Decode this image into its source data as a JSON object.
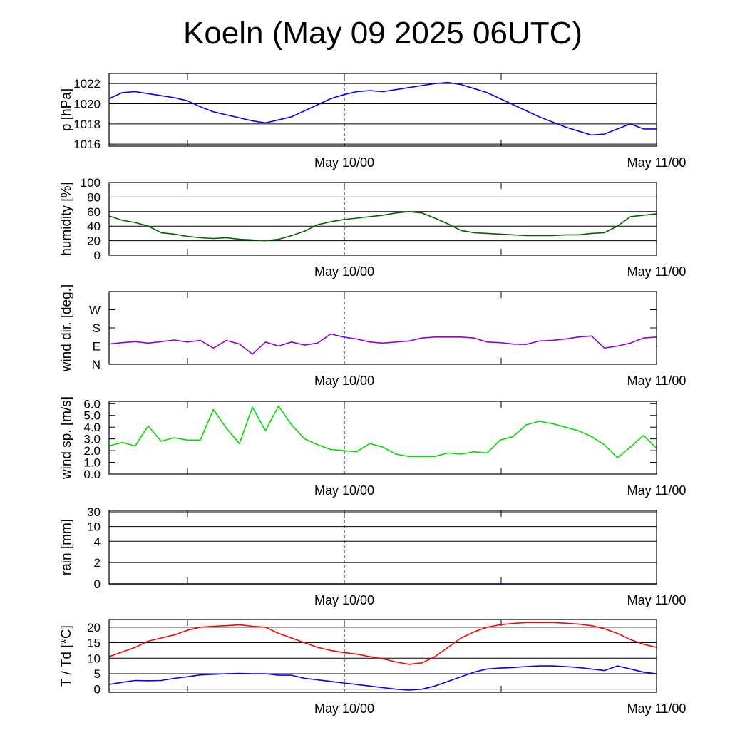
{
  "title": "Koeln (May 09 2025 06UTC)",
  "time_axis": {
    "tick_labels": [
      "May 10/00",
      "May 11/00"
    ]
  },
  "chart_data": [
    {
      "type": "line",
      "ylabel": "p [hPa]",
      "yticks": [
        1016,
        1018,
        1020,
        1022
      ],
      "ylim": [
        1015.8,
        1023
      ],
      "grid": true,
      "color": "#0000ff",
      "x_hours": [
        0,
        1,
        2,
        3,
        4,
        5,
        6,
        7,
        8,
        9,
        10,
        11,
        12,
        13,
        14,
        15,
        16,
        17,
        18,
        19,
        20,
        21,
        22,
        23,
        24,
        25,
        26,
        27,
        28,
        29,
        30,
        31,
        32,
        33,
        34,
        35,
        36,
        37,
        38,
        39,
        40,
        41,
        42
      ],
      "values": [
        1020.5,
        1021.1,
        1021.2,
        1021.0,
        1020.8,
        1020.6,
        1020.3,
        1019.7,
        1019.2,
        1018.9,
        1018.6,
        1018.3,
        1018.1,
        1018.4,
        1018.7,
        1019.3,
        1019.9,
        1020.5,
        1020.9,
        1021.2,
        1021.3,
        1021.2,
        1021.4,
        1021.6,
        1021.8,
        1022.0,
        1022.1,
        1021.9,
        1021.5,
        1021.1,
        1020.5,
        1019.9,
        1019.3,
        1018.7,
        1018.2,
        1017.7,
        1017.3,
        1016.9,
        1017.0,
        1017.5,
        1018.0,
        1017.5,
        1017.5
      ]
    },
    {
      "type": "line",
      "ylabel": "humidity [%]",
      "yticks": [
        0,
        20,
        40,
        60,
        80,
        100
      ],
      "ylim": [
        0,
        100
      ],
      "grid": true,
      "color": "#006400",
      "x_hours": [
        0,
        1,
        2,
        3,
        4,
        5,
        6,
        7,
        8,
        9,
        10,
        11,
        12,
        13,
        14,
        15,
        16,
        17,
        18,
        19,
        20,
        21,
        22,
        23,
        24,
        25,
        26,
        27,
        28,
        29,
        30,
        31,
        32,
        33,
        34,
        35,
        36,
        37,
        38,
        39,
        40,
        41,
        42
      ],
      "values": [
        54,
        48,
        45,
        40,
        31,
        29,
        26,
        24,
        23,
        24,
        22,
        21,
        20,
        22,
        27,
        33,
        42,
        46,
        49,
        51,
        53,
        55,
        58,
        60,
        58,
        51,
        43,
        34,
        31,
        30,
        29,
        28,
        27,
        27,
        27,
        28,
        28,
        30,
        31,
        40,
        53,
        55,
        57
      ]
    },
    {
      "type": "line",
      "ylabel": "wind dir. [deg.]",
      "ytick_labels": [
        "N",
        "E",
        "S",
        "W"
      ],
      "yticks": [
        0,
        90,
        180,
        270
      ],
      "ylim": [
        0,
        360
      ],
      "grid": false,
      "color": "#9400d3",
      "x_hours": [
        0,
        1,
        2,
        3,
        4,
        5,
        6,
        7,
        8,
        9,
        10,
        11,
        12,
        13,
        14,
        15,
        16,
        17,
        18,
        19,
        20,
        21,
        22,
        23,
        24,
        25,
        26,
        27,
        28,
        29,
        30,
        31,
        32,
        33,
        34,
        35,
        36,
        37,
        38,
        39,
        40,
        41,
        42
      ],
      "values": [
        100,
        107,
        112,
        105,
        112,
        120,
        110,
        118,
        80,
        118,
        100,
        50,
        110,
        90,
        110,
        95,
        105,
        150,
        135,
        125,
        110,
        105,
        110,
        115,
        130,
        135,
        135,
        135,
        130,
        110,
        107,
        100,
        98,
        115,
        118,
        125,
        135,
        140,
        80,
        90,
        105,
        130,
        135
      ]
    },
    {
      "type": "line",
      "ylabel": "wind sp. [m/s]",
      "yticks": [
        0.0,
        1.0,
        2.0,
        3.0,
        4.0,
        5.0,
        6.0
      ],
      "ytick_labels": [
        "0.0",
        "1.0",
        "2.0",
        "3.0",
        "4.0",
        "5.0",
        "6.0"
      ],
      "ylim": [
        0,
        6.2
      ],
      "grid": false,
      "color": "#00dd00",
      "x_hours": [
        0,
        1,
        2,
        3,
        4,
        5,
        6,
        7,
        8,
        9,
        10,
        11,
        12,
        13,
        14,
        15,
        16,
        17,
        18,
        19,
        20,
        21,
        22,
        23,
        24,
        25,
        26,
        27,
        28,
        29,
        30,
        31,
        32,
        33,
        34,
        35,
        36,
        37,
        38,
        39,
        40,
        41,
        42
      ],
      "values": [
        2.4,
        2.7,
        2.4,
        4.1,
        2.8,
        3.1,
        2.9,
        2.9,
        5.5,
        3.9,
        2.6,
        5.7,
        3.7,
        5.8,
        4.2,
        3.0,
        2.5,
        2.1,
        2.0,
        1.9,
        2.6,
        2.3,
        1.7,
        1.5,
        1.5,
        1.5,
        1.8,
        1.7,
        1.9,
        1.8,
        2.9,
        3.2,
        4.2,
        4.5,
        4.3,
        4.0,
        3.7,
        3.2,
        2.5,
        1.4,
        2.3,
        3.3,
        2.2
      ]
    },
    {
      "type": "line",
      "ylabel": "rain [mm]",
      "yticks": [
        0,
        2,
        4,
        10,
        30
      ],
      "ylim": [
        0,
        30
      ],
      "grid": true,
      "color": "#0000ff",
      "x_hours": [
        0,
        42
      ],
      "values": [
        0,
        0
      ]
    },
    {
      "type": "line",
      "ylabel": "T / Td [*C]",
      "yticks": [
        0,
        5,
        10,
        15,
        20
      ],
      "ylim": [
        -1,
        22.5
      ],
      "grid": true,
      "x_hours": [
        0,
        1,
        2,
        3,
        4,
        5,
        6,
        7,
        8,
        9,
        10,
        11,
        12,
        13,
        14,
        15,
        16,
        17,
        18,
        19,
        20,
        21,
        22,
        23,
        24,
        25,
        26,
        27,
        28,
        29,
        30,
        31,
        32,
        33,
        34,
        35,
        36,
        37,
        38,
        39,
        40,
        41,
        42
      ],
      "series": [
        {
          "color": "#ff0000",
          "values": [
            10.5,
            12.0,
            13.5,
            15.5,
            16.5,
            17.5,
            19.0,
            20.0,
            20.3,
            20.5,
            20.8,
            20.3,
            20.0,
            18.0,
            16.5,
            15.0,
            13.5,
            12.5,
            11.8,
            11.3,
            10.5,
            9.8,
            8.8,
            8.0,
            8.5,
            10.5,
            13.5,
            16.5,
            18.5,
            20.0,
            20.8,
            21.2,
            21.5,
            21.5,
            21.5,
            21.3,
            21.0,
            20.5,
            19.5,
            18.0,
            16.0,
            14.5,
            13.5
          ]
        },
        {
          "color": "#0000ff",
          "values": [
            1.5,
            2.2,
            2.8,
            2.7,
            2.8,
            3.5,
            4.0,
            4.6,
            4.8,
            5.0,
            5.1,
            5.0,
            5.0,
            4.5,
            4.5,
            3.5,
            3.0,
            2.5,
            2.0,
            1.5,
            1.0,
            0.5,
            0.0,
            -0.3,
            0.0,
            1.0,
            2.5,
            4.0,
            5.5,
            6.5,
            6.8,
            7.0,
            7.3,
            7.5,
            7.5,
            7.3,
            7.0,
            6.5,
            6.0,
            7.5,
            6.5,
            5.5,
            5.0
          ]
        }
      ]
    }
  ]
}
